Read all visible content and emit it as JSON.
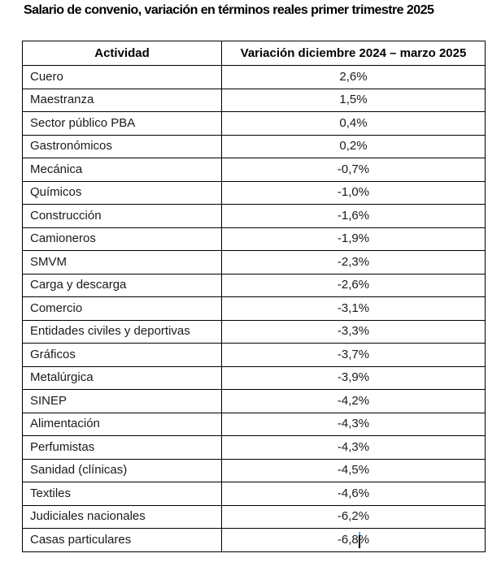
{
  "page": {
    "title": "Salario de convenio, variación en términos reales primer trimestre 2025"
  },
  "table": {
    "columns": [
      "Actividad",
      "Variación diciembre 2024 – marzo 2025"
    ],
    "rows": [
      {
        "actividad": "Cuero",
        "variacion": "2,6%"
      },
      {
        "actividad": "Maestranza",
        "variacion": "1,5%"
      },
      {
        "actividad": "Sector público PBA",
        "variacion": "0,4%"
      },
      {
        "actividad": "Gastronómicos",
        "variacion": "0,2%"
      },
      {
        "actividad": "Mecánica",
        "variacion": "-0,7%"
      },
      {
        "actividad": "Químicos",
        "variacion": "-1,0%"
      },
      {
        "actividad": "Construcción",
        "variacion": "-1,6%"
      },
      {
        "actividad": "Camioneros",
        "variacion": "-1,9%"
      },
      {
        "actividad": "SMVM",
        "variacion": "-2,3%"
      },
      {
        "actividad": "Carga y descarga",
        "variacion": "-2,6%"
      },
      {
        "actividad": "Comercio",
        "variacion": "-3,1%"
      },
      {
        "actividad": "Entidades civiles y deportivas",
        "variacion": "-3,3%"
      },
      {
        "actividad": "Gráficos",
        "variacion": "-3,7%"
      },
      {
        "actividad": "Metalúrgica",
        "variacion": "-3,9%"
      },
      {
        "actividad": "SINEP",
        "variacion": "-4,2%"
      },
      {
        "actividad": "Alimentación",
        "variacion": "-4,3%"
      },
      {
        "actividad": "Perfumistas",
        "variacion": "-4,3%"
      },
      {
        "actividad": "Sanidad (clínicas)",
        "variacion": "-4,5%"
      },
      {
        "actividad": "Textiles",
        "variacion": "-4,6%"
      },
      {
        "actividad": "Judiciales nacionales",
        "variacion": "-6,2%"
      },
      {
        "actividad": "Casas particulares",
        "variacion": "-6,8%"
      }
    ]
  },
  "colors": {
    "background": "#ffffff",
    "border": "#000000",
    "text": "#1a1a1a",
    "title": "#000000",
    "cursor_tip": "#5aa7da"
  }
}
